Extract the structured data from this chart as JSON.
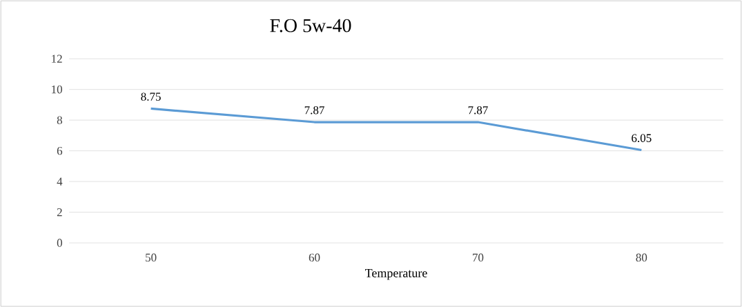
{
  "chart_data": {
    "type": "line",
    "title": "F.O  5w-40",
    "xlabel": "Temperature",
    "categories": [
      "50",
      "60",
      "70",
      "80"
    ],
    "values": [
      8.75,
      7.87,
      7.87,
      6.05
    ],
    "color": "#5b9bd5",
    "ylim": [
      0,
      12
    ],
    "yticks": [
      0,
      2,
      4,
      6,
      8,
      10,
      12
    ],
    "grid": "y",
    "data_labels": true,
    "marker": "none",
    "line_style": "solid"
  }
}
